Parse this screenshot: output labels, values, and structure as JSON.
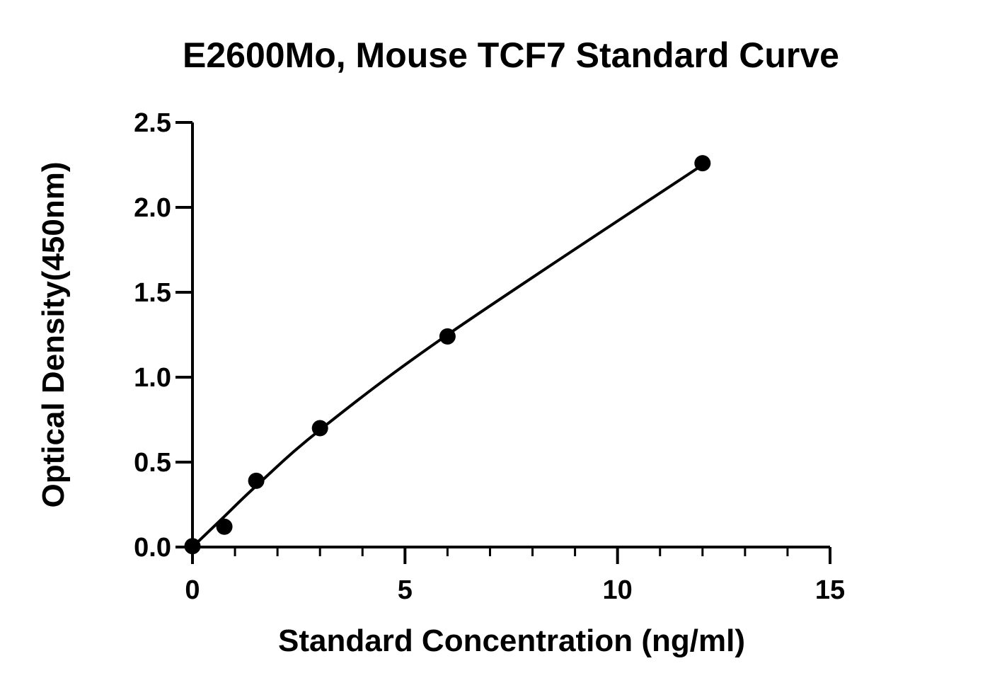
{
  "chart_data": {
    "type": "scatter",
    "title": "E2600Mo, Mouse TCF7 Standard Curve",
    "xlabel": "Standard Concentration (ng/ml)",
    "ylabel": "Optical Density(450nm)",
    "xlim": [
      0,
      15
    ],
    "ylim": [
      0,
      2.5
    ],
    "x_ticks": [
      0,
      5,
      10,
      15
    ],
    "x_tick_labels": [
      "0",
      "5",
      "10",
      "15"
    ],
    "x_minor_tick_step": 1,
    "y_ticks": [
      0,
      0.5,
      1.0,
      1.5,
      2.0,
      2.5
    ],
    "y_tick_labels": [
      "0.0",
      "0.5",
      "1.0",
      "1.5",
      "2.0",
      "2.5"
    ],
    "grid": false,
    "legend": "none",
    "colors": {
      "points": "#000000",
      "curve": "#000000",
      "axes": "#000000"
    },
    "series": [
      {
        "x": [
          0,
          0.75,
          1.5,
          3,
          6,
          12
        ],
        "y": [
          0.005,
          0.12,
          0.39,
          0.7,
          1.24,
          2.26
        ]
      }
    ],
    "fit_curve": {
      "type": "smooth",
      "x": [
        0,
        0.75,
        1.5,
        3,
        6,
        12
      ],
      "y": [
        0.0,
        0.18,
        0.36,
        0.69,
        1.25,
        2.25
      ]
    }
  }
}
